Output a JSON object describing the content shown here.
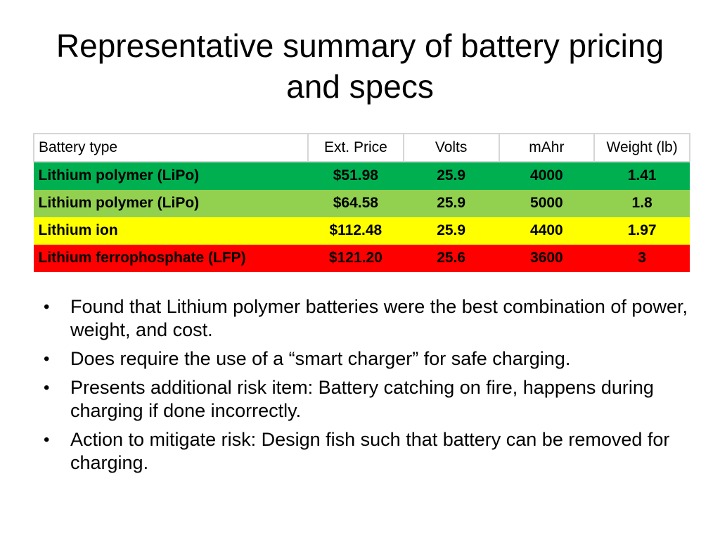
{
  "title": "Representative summary of battery pricing and specs",
  "table": {
    "headers": [
      "Battery type",
      "Ext. Price",
      "Volts",
      "mAhr",
      "Weight (lb)"
    ],
    "rows": [
      {
        "type": "Lithium polymer (LiPo)",
        "price": "$51.98",
        "volts": "25.9",
        "mahr": "4000",
        "weight": "1.41",
        "color": "#00b050"
      },
      {
        "type": "Lithium polymer (LiPo)",
        "price": "$64.58",
        "volts": "25.9",
        "mahr": "5000",
        "weight": "1.8",
        "color": "#92d050"
      },
      {
        "type": "Lithium ion",
        "price": "$112.48",
        "volts": "25.9",
        "mahr": "4400",
        "weight": "1.97",
        "color": "#ffff00"
      },
      {
        "type": "Lithium ferrophosphate (LFP)",
        "price": "$121.20",
        "volts": "25.6",
        "mahr": "3600",
        "weight": "3",
        "color": "#ff0000"
      }
    ]
  },
  "bullets": [
    "Found that Lithium polymer batteries were the best combination of power, weight, and cost.",
    "Does require the use of a “smart charger” for safe charging.",
    "Presents additional risk item: Battery catching on fire, happens during charging if done incorrectly.",
    "Action to mitigate risk: Design fish such that battery can be removed for charging."
  ]
}
